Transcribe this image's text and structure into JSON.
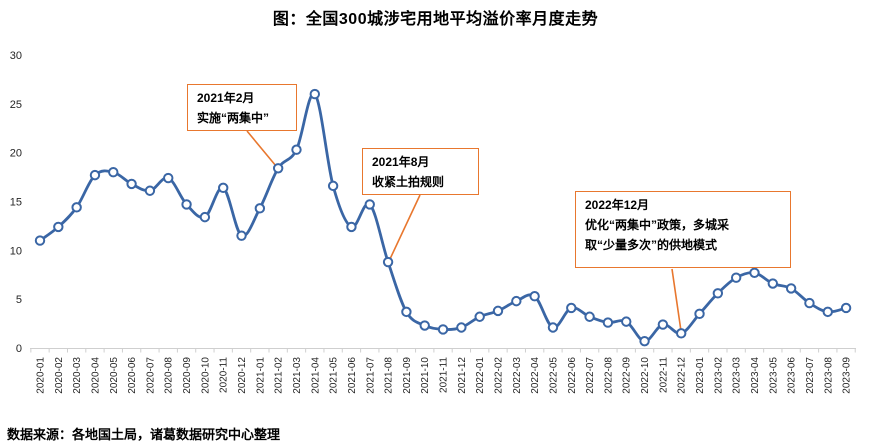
{
  "chart_data": {
    "type": "line",
    "title": "图：全国300城涉宅用地平均溢价率月度走势",
    "xlabel": "",
    "ylabel": "",
    "ylim": [
      0,
      30
    ],
    "yticks": [
      0,
      5,
      10,
      15,
      20,
      25,
      30
    ],
    "grid": false,
    "legend": "none",
    "line_color": "#3A66A5",
    "marker_style": "open-circle",
    "categories": [
      "2020-01",
      "2020-02",
      "2020-03",
      "2020-04",
      "2020-05",
      "2020-06",
      "2020-07",
      "2020-08",
      "2020-09",
      "2020-10",
      "2020-11",
      "2020-12",
      "2021-01",
      "2021-02",
      "2021-03",
      "2021-04",
      "2021-05",
      "2021-06",
      "2021-07",
      "2021-08",
      "2021-09",
      "2021-10",
      "2021-11",
      "2021-12",
      "2022-01",
      "2022-02",
      "2022-03",
      "2022-04",
      "2022-05",
      "2022-06",
      "2022-07",
      "2022-08",
      "2022-09",
      "2022-10",
      "2022-11",
      "2022-12",
      "2023-01",
      "2023-02",
      "2023-03",
      "2023-04",
      "2023-05",
      "2023-06",
      "2023-07",
      "2023-08",
      "2023-09"
    ],
    "series": [
      {
        "name": "全国300城涉宅用地平均溢价率",
        "values": [
          11.0,
          12.4,
          14.4,
          17.7,
          18.0,
          16.8,
          16.1,
          17.4,
          14.7,
          13.4,
          16.4,
          11.5,
          14.3,
          18.4,
          20.3,
          26.0,
          16.6,
          12.4,
          14.7,
          8.8,
          3.7,
          2.3,
          1.9,
          2.1,
          3.2,
          3.8,
          4.8,
          5.3,
          2.1,
          4.1,
          3.2,
          2.6,
          2.7,
          0.7,
          2.4,
          1.5,
          3.5,
          5.6,
          7.2,
          7.7,
          6.6,
          6.1,
          4.6,
          3.7,
          4.1
        ]
      }
    ]
  },
  "annotations": [
    {
      "line1": "2021年2月",
      "line2": "实施“两集中”"
    },
    {
      "line1": "2021年8月",
      "line2": "收紧土拍规则"
    },
    {
      "line1": "2022年12月",
      "line2": "优化“两集中”政策，多城采",
      "line3": "取“少量多次”的供地模式"
    }
  ],
  "footer": {
    "source": "数据来源：各地国土局，诸葛数据研究中心整理"
  },
  "colors": {
    "line": "#3A66A5",
    "annotation_border": "#E8772E",
    "axis": "#CFCFCF",
    "tick_label": "#262626"
  }
}
